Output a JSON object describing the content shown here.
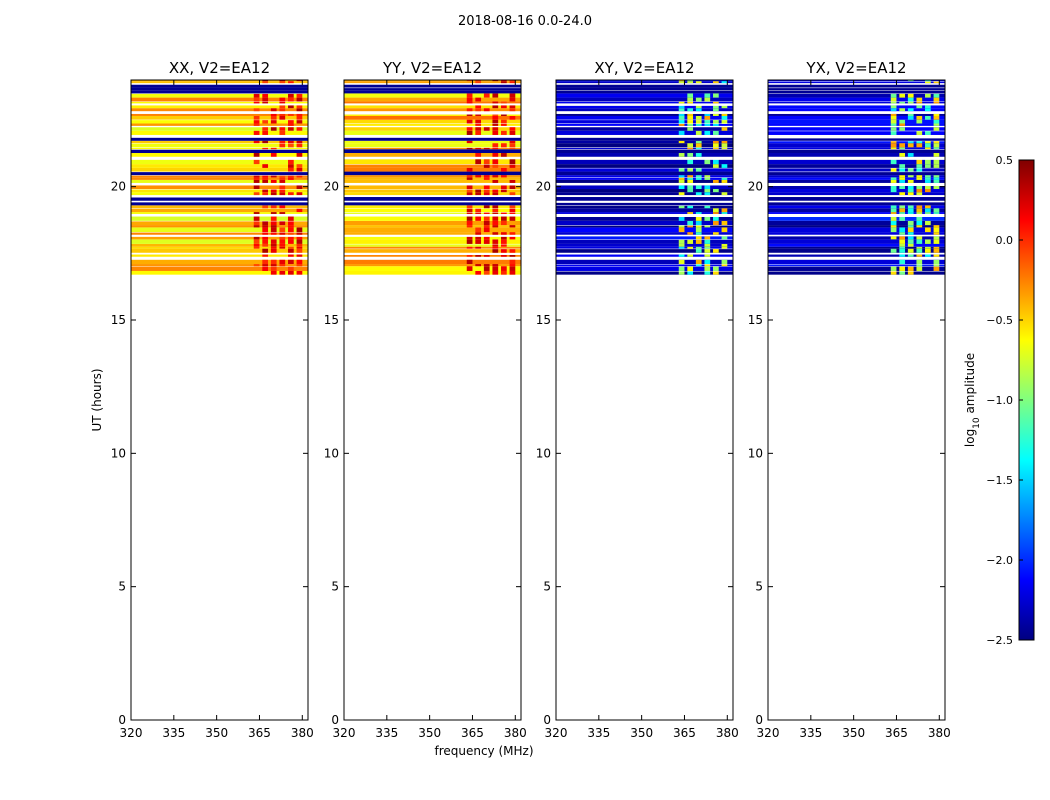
{
  "chart_data": {
    "type": "heatmap",
    "suptitle": "2018-08-16 0.0-24.0",
    "xlabel": "frequency (MHz)",
    "ylabel": "UT (hours)",
    "xlim": [
      320,
      382
    ],
    "ylim": [
      0,
      24
    ],
    "xticks": [
      320,
      335,
      350,
      365,
      380
    ],
    "xtick_labels": [
      "320",
      "335",
      "350",
      "365",
      "380"
    ],
    "yticks": [
      0,
      5,
      10,
      15,
      20
    ],
    "ytick_labels": [
      "0",
      "5",
      "10",
      "15",
      "20"
    ],
    "data_ut_range": [
      16.7,
      24.0
    ],
    "colorbar": {
      "label": "log10 amplitude",
      "colormap": "jet",
      "range": [
        -2.5,
        0.5
      ],
      "ticks": [
        0.5,
        0.0,
        -0.5,
        -1.0,
        -1.5,
        -2.0,
        -2.5
      ],
      "tick_labels": [
        "0.5",
        "0.0",
        "−0.5",
        "−1.0",
        "−1.5",
        "−2.0",
        "−2.5"
      ]
    },
    "panels": [
      {
        "title": "XX, V2=EA12",
        "polarization": "XX",
        "median_log_amp": -0.5,
        "rfi_band_mhz": [
          363,
          381
        ]
      },
      {
        "title": "YY, V2=EA12",
        "polarization": "YY",
        "median_log_amp": -0.45,
        "rfi_band_mhz": [
          363,
          381
        ]
      },
      {
        "title": "XY, V2=EA12",
        "polarization": "XY",
        "median_log_amp": -2.3,
        "rfi_band_mhz": [
          363,
          381
        ]
      },
      {
        "title": "YX, V2=EA12",
        "polarization": "YX",
        "median_log_amp": -2.25,
        "rfi_band_mhz": [
          363,
          381
        ]
      }
    ]
  }
}
